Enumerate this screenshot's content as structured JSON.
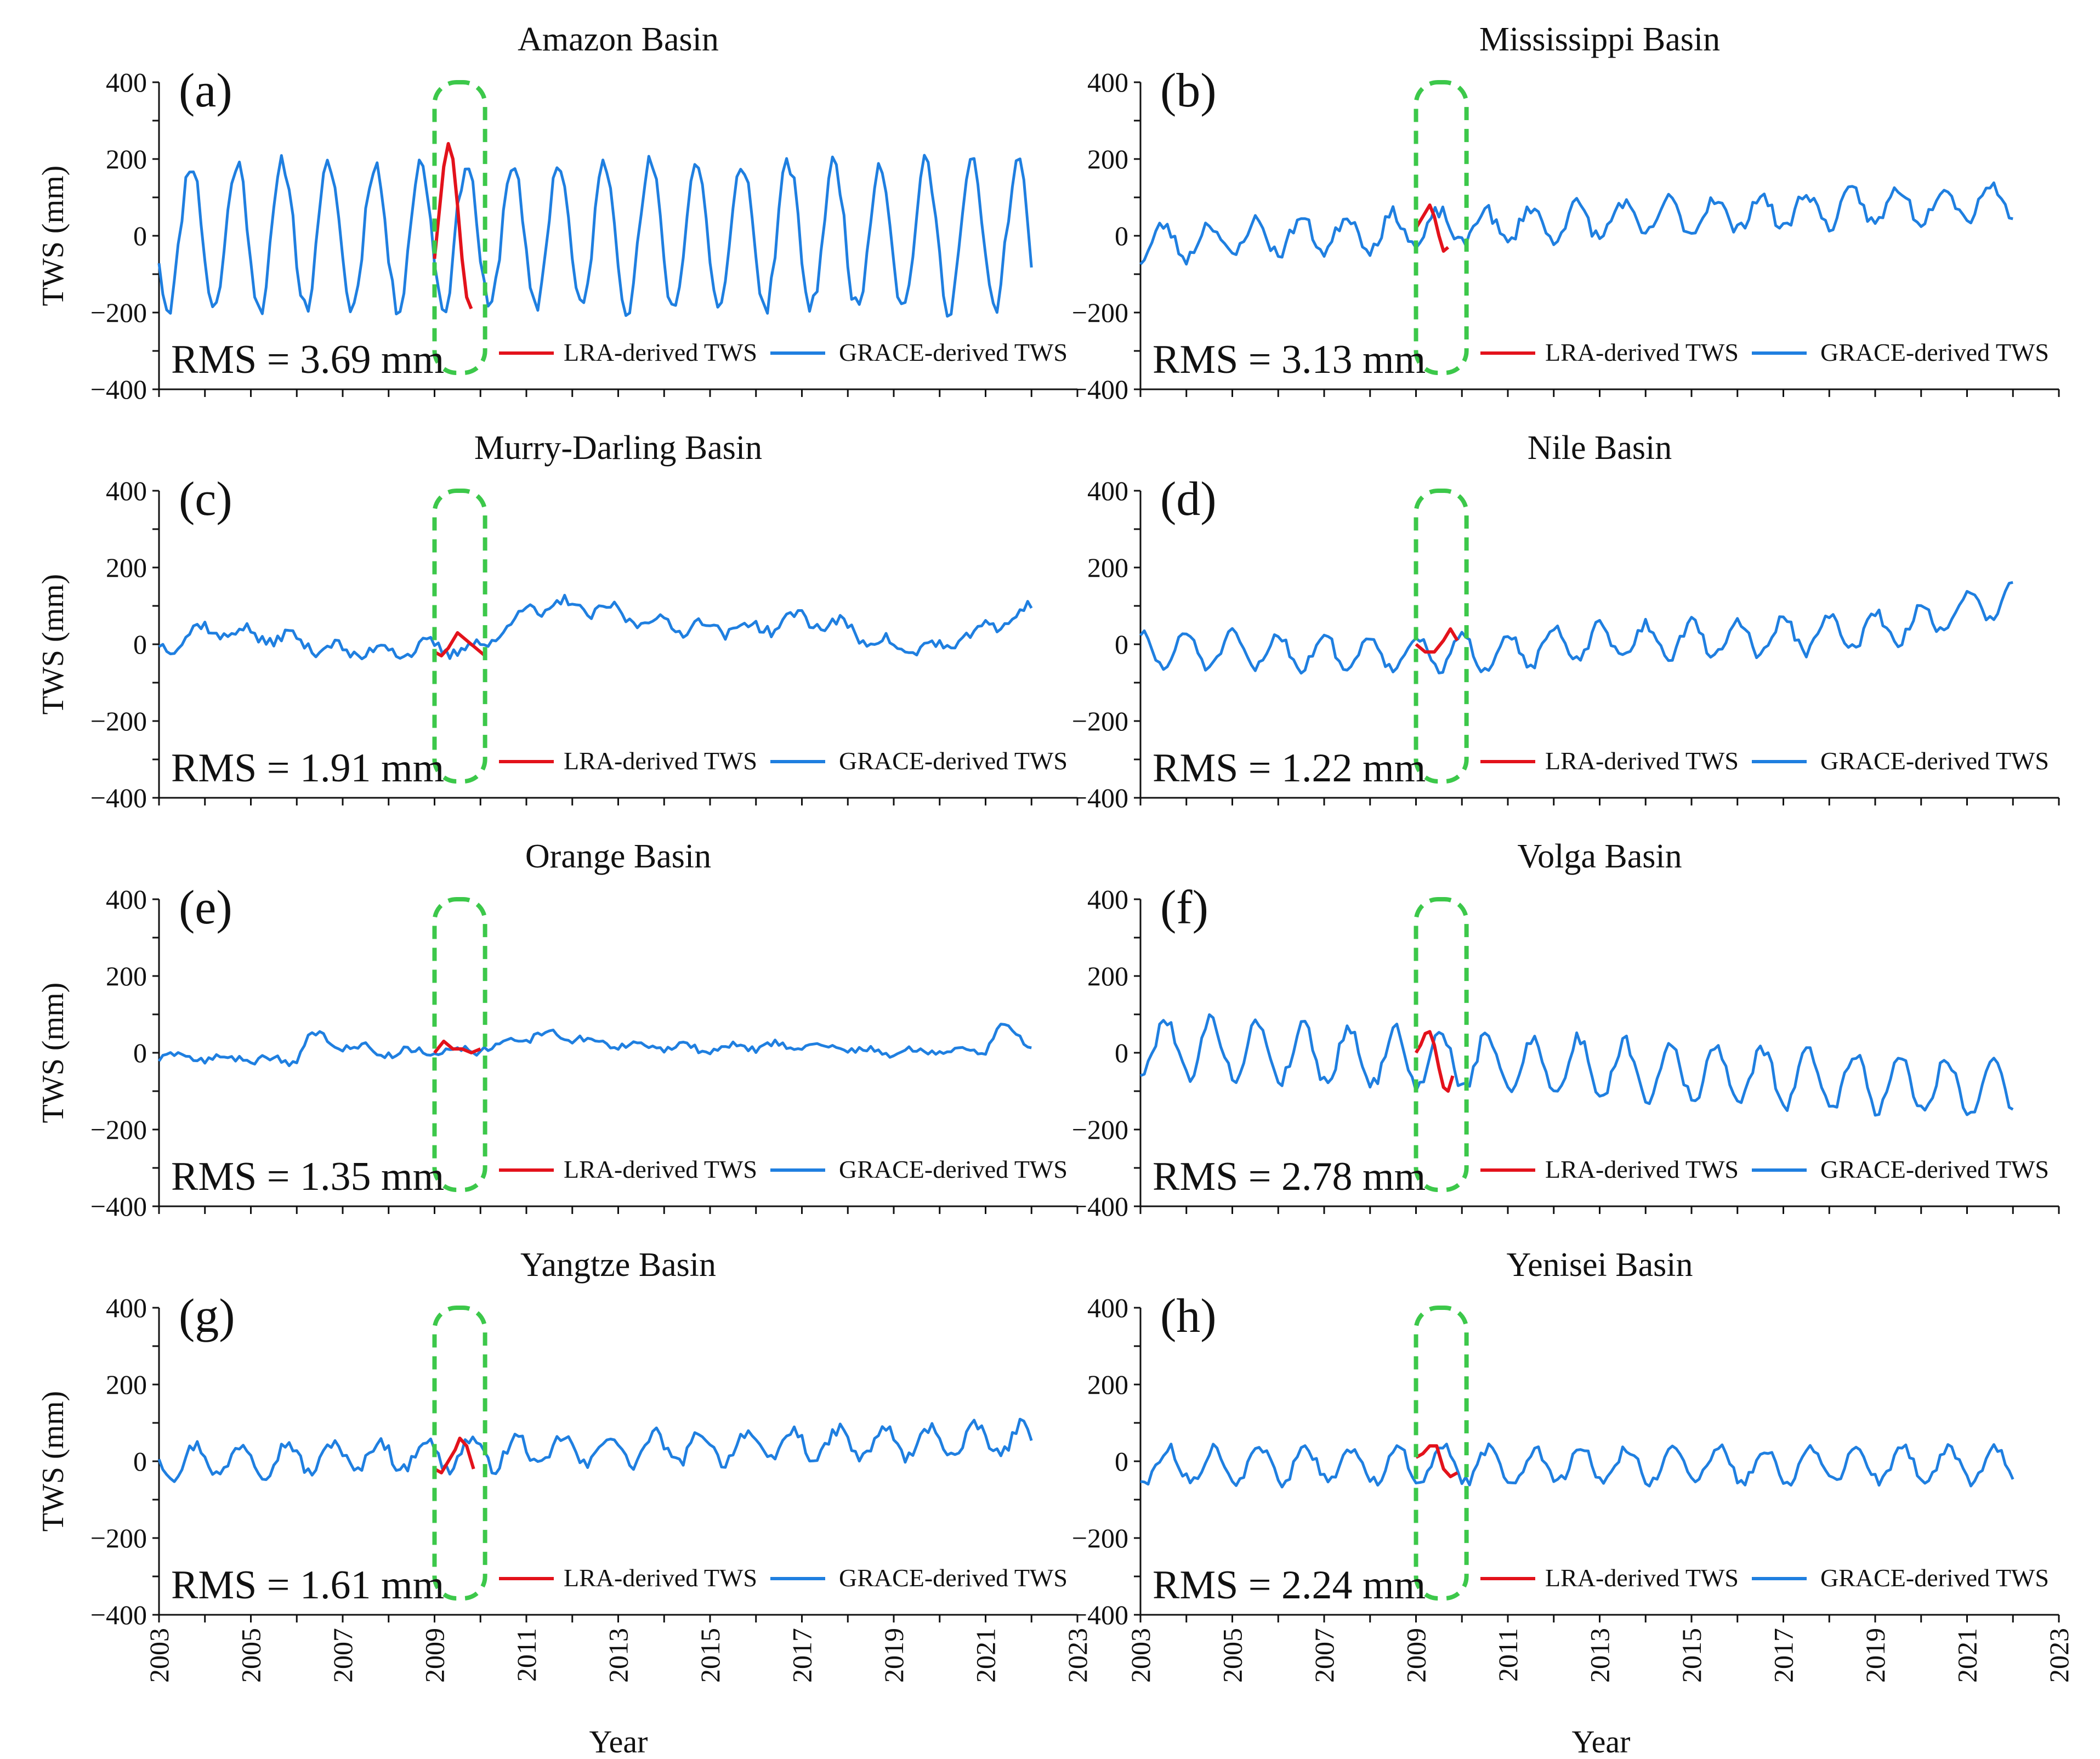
{
  "figure": {
    "x_axis_label": "Year",
    "y_axis_label": "TWS (mm)"
  },
  "legend": {
    "lra": "LRA-derived TWS",
    "grace": "GRACE-derived TWS"
  },
  "colors": {
    "lra": "#e3121b",
    "grace": "#1f7fe0",
    "highlight": "#3cc84a",
    "axis": "#111111"
  },
  "chart_data": [
    {
      "type": "line",
      "panel": "(a)",
      "title": "Amazon Basin",
      "rms": "RMS = 3.69 mm",
      "xlabel": "Year",
      "ylabel": "TWS (mm)",
      "xlim": [
        2003,
        2023
      ],
      "ylim": [
        -400,
        400
      ],
      "xticks": [
        "2003",
        "2005",
        "2007",
        "2009",
        "2011",
        "2013",
        "2015",
        "2017",
        "2019",
        "2021",
        "2023"
      ],
      "yticks": [
        "400",
        "200",
        "0",
        "−200",
        "−400"
      ],
      "highlight_window": [
        2009.0,
        2010.1
      ],
      "series": [
        {
          "name": "GRACE-derived TWS",
          "color": "#1f7fe0",
          "amp": 190,
          "phase": 0.45,
          "offset": 0,
          "trend": 0,
          "noise": 25,
          "seed": 11
        },
        {
          "name": "LRA-derived TWS",
          "color": "#e3121b",
          "x": [
            2009.0,
            2009.1,
            2009.2,
            2009.3,
            2009.4,
            2009.5,
            2009.6,
            2009.7,
            2009.8
          ],
          "values": [
            -60,
            60,
            180,
            240,
            200,
            80,
            -60,
            -160,
            -190
          ]
        }
      ]
    },
    {
      "type": "line",
      "panel": "(b)",
      "title": "Mississippi Basin",
      "rms": "RMS = 3.13 mm",
      "xlabel": "Year",
      "ylabel": "TWS (mm)",
      "xlim": [
        2003,
        2023
      ],
      "ylim": [
        -400,
        400
      ],
      "xticks": [
        "2003",
        "2005",
        "2007",
        "2009",
        "2011",
        "2013",
        "2015",
        "2017",
        "2019",
        "2021",
        "2023"
      ],
      "yticks": [
        "400",
        "200",
        "0",
        "−200",
        "−400"
      ],
      "highlight_window": [
        2009.0,
        2010.1
      ],
      "series": [
        {
          "name": "GRACE-derived TWS",
          "color": "#1f7fe0",
          "amp": 45,
          "phase": 0.25,
          "offset": -20,
          "trend": 6,
          "noise": 18,
          "seed": 23
        },
        {
          "name": "LRA-derived TWS",
          "color": "#e3121b",
          "x": [
            2009.0,
            2009.1,
            2009.2,
            2009.3,
            2009.4,
            2009.5,
            2009.6,
            2009.7
          ],
          "values": [
            20,
            40,
            60,
            80,
            50,
            0,
            -40,
            -30
          ]
        }
      ]
    },
    {
      "type": "line",
      "panel": "(c)",
      "title": "Murry-Darling Basin",
      "rms": "RMS = 1.91 mm",
      "xlabel": "Year",
      "ylabel": "TWS (mm)",
      "xlim": [
        2003,
        2023
      ],
      "ylim": [
        -400,
        400
      ],
      "xticks": [
        "2003",
        "2005",
        "2007",
        "2009",
        "2011",
        "2013",
        "2015",
        "2017",
        "2019",
        "2021",
        "2023"
      ],
      "yticks": [
        "400",
        "200",
        "0",
        "−200",
        "−400"
      ],
      "highlight_window": [
        2009.0,
        2010.1
      ],
      "series": [
        {
          "name": "GRACE-derived TWS",
          "color": "#1f7fe0",
          "amp": 18,
          "phase": 0.6,
          "offset": 0,
          "trend": 0,
          "noise": 14,
          "seed": 37,
          "anchors": [
            [
              2003,
              -10
            ],
            [
              2004,
              40
            ],
            [
              2006,
              10
            ],
            [
              2007,
              -20
            ],
            [
              2009,
              -10
            ],
            [
              2010,
              -10
            ],
            [
              2011,
              90
            ],
            [
              2012,
              100
            ],
            [
              2013,
              80
            ],
            [
              2014,
              50
            ],
            [
              2016,
              40
            ],
            [
              2017,
              70
            ],
            [
              2018,
              40
            ],
            [
              2019,
              -10
            ],
            [
              2020,
              -10
            ],
            [
              2021,
              40
            ],
            [
              2022,
              90
            ]
          ]
        },
        {
          "name": "LRA-derived TWS",
          "color": "#e3121b",
          "x": [
            2009.0,
            2009.15,
            2009.3,
            2009.5,
            2009.7,
            2009.9,
            2010.1
          ],
          "values": [
            -20,
            -30,
            -10,
            30,
            10,
            -10,
            -30
          ]
        }
      ]
    },
    {
      "type": "line",
      "panel": "(d)",
      "title": "Nile Basin",
      "rms": "RMS = 1.22 mm",
      "xlabel": "Year",
      "ylabel": "TWS (mm)",
      "xlim": [
        2003,
        2023
      ],
      "ylim": [
        -400,
        400
      ],
      "xticks": [
        "2003",
        "2005",
        "2007",
        "2009",
        "2011",
        "2013",
        "2015",
        "2017",
        "2019",
        "2021",
        "2023"
      ],
      "yticks": [
        "400",
        "200",
        "0",
        "−200",
        "−400"
      ],
      "highlight_window": [
        2009.0,
        2010.1
      ],
      "series": [
        {
          "name": "GRACE-derived TWS",
          "color": "#1f7fe0",
          "amp": 45,
          "phase": 0.75,
          "offset": -15,
          "trend": 0,
          "noise": 14,
          "seed": 51,
          "anchors": [
            [
              2003,
              0
            ],
            [
              2010,
              -10
            ],
            [
              2013,
              20
            ],
            [
              2016,
              30
            ],
            [
              2019,
              50
            ],
            [
              2020,
              70
            ],
            [
              2021,
              110
            ],
            [
              2022,
              140
            ]
          ]
        },
        {
          "name": "LRA-derived TWS",
          "color": "#e3121b",
          "x": [
            2009.0,
            2009.2,
            2009.4,
            2009.6,
            2009.75,
            2009.9
          ],
          "values": [
            0,
            -20,
            -20,
            10,
            40,
            10
          ]
        }
      ]
    },
    {
      "type": "line",
      "panel": "(e)",
      "title": "Orange Basin",
      "rms": "RMS = 1.35 mm",
      "xlabel": "Year",
      "ylabel": "TWS (mm)",
      "xlim": [
        2003,
        2023
      ],
      "ylim": [
        -400,
        400
      ],
      "xticks": [
        "2003",
        "2005",
        "2007",
        "2009",
        "2011",
        "2013",
        "2015",
        "2017",
        "2019",
        "2021",
        "2023"
      ],
      "yticks": [
        "400",
        "200",
        "0",
        "−200",
        "−400"
      ],
      "highlight_window": [
        2009.0,
        2010.1
      ],
      "series": [
        {
          "name": "GRACE-derived TWS",
          "color": "#1f7fe0",
          "amp": 8,
          "phase": 0.2,
          "offset": 0,
          "trend": 0,
          "noise": 9,
          "seed": 63,
          "anchors": [
            [
              2003,
              -10
            ],
            [
              2006,
              -20
            ],
            [
              2006.3,
              50
            ],
            [
              2007,
              20
            ],
            [
              2008,
              0
            ],
            [
              2010,
              10
            ],
            [
              2011.5,
              50
            ],
            [
              2013,
              20
            ],
            [
              2015,
              10
            ],
            [
              2017,
              20
            ],
            [
              2019,
              0
            ],
            [
              2021,
              10
            ],
            [
              2021.3,
              70
            ],
            [
              2022,
              20
            ]
          ]
        },
        {
          "name": "LRA-derived TWS",
          "color": "#e3121b",
          "x": [
            2009.0,
            2009.2,
            2009.4,
            2009.6,
            2009.8,
            2010.0
          ],
          "values": [
            0,
            30,
            10,
            10,
            0,
            10
          ]
        }
      ]
    },
    {
      "type": "line",
      "panel": "(f)",
      "title": "Volga Basin",
      "rms": "RMS = 2.78 mm",
      "xlabel": "Year",
      "ylabel": "TWS (mm)",
      "xlim": [
        2003,
        2023
      ],
      "ylim": [
        -400,
        400
      ],
      "xticks": [
        "2003",
        "2005",
        "2007",
        "2009",
        "2011",
        "2013",
        "2015",
        "2017",
        "2019",
        "2021",
        "2023"
      ],
      "yticks": [
        "400",
        "200",
        "0",
        "−200",
        "−400"
      ],
      "highlight_window": [
        2009.0,
        2010.1
      ],
      "series": [
        {
          "name": "GRACE-derived TWS",
          "color": "#1f7fe0",
          "amp": 75,
          "phase": 0.3,
          "offset": 20,
          "trend": -6,
          "noise": 18,
          "seed": 79
        },
        {
          "name": "LRA-derived TWS",
          "color": "#e3121b",
          "x": [
            2009.0,
            2009.1,
            2009.2,
            2009.3,
            2009.4,
            2009.5,
            2009.6,
            2009.7,
            2009.8
          ],
          "values": [
            0,
            20,
            50,
            55,
            20,
            -40,
            -90,
            -100,
            -60
          ]
        }
      ]
    },
    {
      "type": "line",
      "panel": "(g)",
      "title": "Yangtze Basin",
      "rms": "RMS = 1.61 mm",
      "xlabel": "Year",
      "ylabel": "TWS (mm)",
      "xlim": [
        2003,
        2023
      ],
      "ylim": [
        -400,
        400
      ],
      "xticks": [
        "2003",
        "2005",
        "2007",
        "2009",
        "2011",
        "2013",
        "2015",
        "2017",
        "2019",
        "2021",
        "2023"
      ],
      "yticks": [
        "400",
        "200",
        "0",
        "−200",
        "−400"
      ],
      "highlight_window": [
        2009.0,
        2010.1
      ],
      "series": [
        {
          "name": "GRACE-derived TWS",
          "color": "#1f7fe0",
          "amp": 40,
          "phase": 0.55,
          "offset": 0,
          "trend": 3,
          "noise": 16,
          "seed": 97
        },
        {
          "name": "LRA-derived TWS",
          "color": "#e3121b",
          "x": [
            2009.0,
            2009.15,
            2009.3,
            2009.45,
            2009.55,
            2009.7,
            2009.85
          ],
          "values": [
            -20,
            -30,
            0,
            30,
            60,
            40,
            -20
          ]
        }
      ]
    },
    {
      "type": "line",
      "panel": "(h)",
      "title": "Yenisei Basin",
      "rms": "RMS = 2.24 mm",
      "xlabel": "Year",
      "ylabel": "TWS (mm)",
      "xlim": [
        2003,
        2023
      ],
      "ylim": [
        -400,
        400
      ],
      "xticks": [
        "2003",
        "2005",
        "2007",
        "2009",
        "2011",
        "2013",
        "2015",
        "2017",
        "2019",
        "2021",
        "2023"
      ],
      "yticks": [
        "400",
        "200",
        "0",
        "−200",
        "−400"
      ],
      "highlight_window": [
        2009.0,
        2010.1
      ],
      "series": [
        {
          "name": "GRACE-derived TWS",
          "color": "#1f7fe0",
          "amp": 45,
          "phase": 0.35,
          "offset": -10,
          "trend": 0,
          "noise": 14,
          "seed": 113
        },
        {
          "name": "LRA-derived TWS",
          "color": "#e3121b",
          "x": [
            2009.0,
            2009.15,
            2009.3,
            2009.45,
            2009.6,
            2009.75,
            2009.9
          ],
          "values": [
            10,
            20,
            40,
            40,
            -20,
            -40,
            -30
          ]
        }
      ]
    }
  ]
}
